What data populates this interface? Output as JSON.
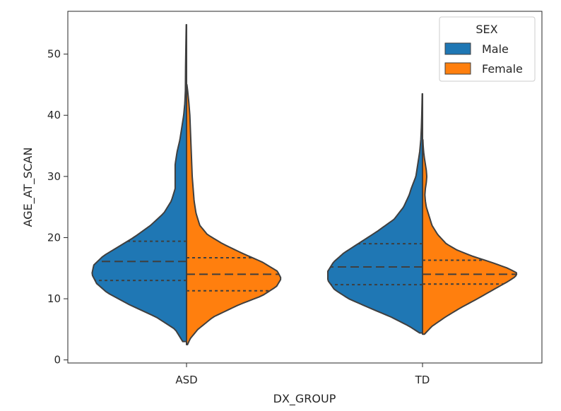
{
  "chart_data": {
    "type": "violin",
    "split": true,
    "inner": "quartile",
    "xlabel": "DX_GROUP",
    "ylabel": "AGE_AT_SCAN",
    "categories": [
      "ASD",
      "TD"
    ],
    "ylim": [
      -0.5,
      57
    ],
    "yticks": [
      0,
      10,
      20,
      30,
      40,
      50
    ],
    "legend": {
      "title": "SEX",
      "position": "top-right",
      "entries": [
        "Male",
        "Female"
      ]
    },
    "colors": {
      "Male": "#1f77b4",
      "Female": "#ff7f0e",
      "outline": "#3f3f3f"
    },
    "series": [
      {
        "name": "Male",
        "violins": [
          {
            "category": "ASD",
            "quartiles": [
              13.0,
              16.1,
              19.4
            ],
            "density": [
              [
                3.0,
                0.04
              ],
              [
                5,
                0.12
              ],
              [
                7,
                0.32
              ],
              [
                9,
                0.6
              ],
              [
                11,
                0.84
              ],
              [
                12.5,
                0.95
              ],
              [
                14,
                1.0
              ],
              [
                15.5,
                0.98
              ],
              [
                17,
                0.88
              ],
              [
                18.5,
                0.72
              ],
              [
                20,
                0.56
              ],
              [
                22,
                0.38
              ],
              [
                24,
                0.24
              ],
              [
                26,
                0.16
              ],
              [
                28,
                0.12
              ],
              [
                30,
                0.12
              ],
              [
                32,
                0.12
              ],
              [
                34,
                0.1
              ],
              [
                36,
                0.07
              ],
              [
                38,
                0.05
              ],
              [
                40,
                0.03
              ],
              [
                42,
                0.018
              ],
              [
                44,
                0.012
              ],
              [
                48,
                0.01
              ],
              [
                52,
                0.006
              ],
              [
                54.8,
                0.003
              ]
            ]
          },
          {
            "category": "TD",
            "quartiles": [
              12.3,
              15.2,
              19.0
            ],
            "density": [
              [
                4.4,
                0.03
              ],
              [
                5.5,
                0.14
              ],
              [
                7,
                0.33
              ],
              [
                8.5,
                0.56
              ],
              [
                10,
                0.78
              ],
              [
                11.5,
                0.93
              ],
              [
                13,
                1.0
              ],
              [
                14.5,
                1.0
              ],
              [
                16,
                0.94
              ],
              [
                17.5,
                0.83
              ],
              [
                19,
                0.68
              ],
              [
                21,
                0.48
              ],
              [
                23,
                0.3
              ],
              [
                25,
                0.2
              ],
              [
                27,
                0.14
              ],
              [
                28,
                0.12
              ],
              [
                30,
                0.07
              ],
              [
                32,
                0.05
              ],
              [
                34,
                0.03
              ],
              [
                36,
                0.018
              ],
              [
                38,
                0.012
              ],
              [
                40,
                0.008
              ],
              [
                42,
                0.005
              ],
              [
                43.5,
                0.003
              ]
            ]
          }
        ]
      },
      {
        "name": "Female",
        "violins": [
          {
            "category": "ASD",
            "quartiles": [
              11.3,
              14.0,
              16.7
            ],
            "density": [
              [
                2.5,
                0.01
              ],
              [
                3.5,
                0.04
              ],
              [
                5,
                0.12
              ],
              [
                7,
                0.28
              ],
              [
                9,
                0.55
              ],
              [
                10.5,
                0.8
              ],
              [
                12,
                0.95
              ],
              [
                13.3,
                1.0
              ],
              [
                14.5,
                0.96
              ],
              [
                16,
                0.8
              ],
              [
                17.5,
                0.58
              ],
              [
                19,
                0.38
              ],
              [
                20.5,
                0.22
              ],
              [
                22,
                0.14
              ],
              [
                24,
                0.1
              ],
              [
                26,
                0.08
              ],
              [
                28,
                0.07
              ],
              [
                30,
                0.06
              ],
              [
                32,
                0.055
              ],
              [
                34,
                0.05
              ],
              [
                36,
                0.045
              ],
              [
                38,
                0.04
              ],
              [
                40,
                0.035
              ],
              [
                42,
                0.025
              ],
              [
                44,
                0.012
              ],
              [
                45,
                0.004
              ]
            ]
          },
          {
            "category": "TD",
            "quartiles": [
              12.4,
              14.0,
              16.3
            ],
            "density": [
              [
                4.2,
                0.02
              ],
              [
                5.5,
                0.1
              ],
              [
                7,
                0.24
              ],
              [
                8.5,
                0.4
              ],
              [
                10,
                0.58
              ],
              [
                11.5,
                0.75
              ],
              [
                12.8,
                0.9
              ],
              [
                13.6,
                0.98
              ],
              [
                14.2,
                1.0
              ],
              [
                15,
                0.9
              ],
              [
                16,
                0.72
              ],
              [
                17,
                0.52
              ],
              [
                18,
                0.36
              ],
              [
                19,
                0.25
              ],
              [
                20.5,
                0.16
              ],
              [
                22,
                0.1
              ],
              [
                24,
                0.06
              ],
              [
                25,
                0.04
              ],
              [
                26,
                0.03
              ],
              [
                27,
                0.025
              ],
              [
                28,
                0.03
              ],
              [
                29,
                0.04
              ],
              [
                30,
                0.045
              ],
              [
                31,
                0.04
              ],
              [
                32,
                0.03
              ],
              [
                33,
                0.02
              ],
              [
                34,
                0.012
              ],
              [
                35,
                0.007
              ],
              [
                36,
                0.004
              ]
            ]
          }
        ]
      }
    ]
  }
}
